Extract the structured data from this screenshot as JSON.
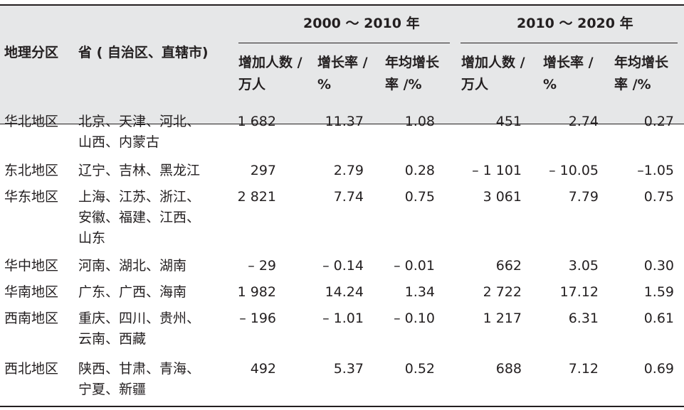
{
  "headers": {
    "col_region": "地理分区",
    "col_provinces": "省 ( 自治区、直辖市)",
    "group_a": "2000 ～ 2010 年",
    "group_b": "2010 ～ 2020 年",
    "sub_increase_l1": "增加人数 /",
    "sub_increase_l2": "万人",
    "sub_rate_l1": "增长率 /",
    "sub_rate_l2": "%",
    "sub_annual_l1": "年均增长",
    "sub_annual_l2": "率 /%"
  },
  "rows": [
    {
      "region": "华北地区",
      "provinces": [
        "北京、天津、河北、",
        "山西、内蒙古"
      ],
      "a_inc": "1 682",
      "a_rate": "11.37",
      "a_ann": "1.08",
      "b_inc": "451",
      "b_rate": "2.74",
      "b_ann": "0.27"
    },
    {
      "region": "东北地区",
      "provinces": [
        "辽宁、吉林、黑龙江"
      ],
      "a_inc": "297",
      "a_rate": "2.79",
      "a_ann": "0.28",
      "b_inc": "– 1 101",
      "b_rate": "– 10.05",
      "b_ann": "–1.05"
    },
    {
      "region": "华东地区",
      "provinces": [
        "上海、江苏、浙江、",
        "安徽、福建、江西、",
        "山东"
      ],
      "a_inc": "2 821",
      "a_rate": "7.74",
      "a_ann": "0.75",
      "b_inc": "3 061",
      "b_rate": "7.79",
      "b_ann": "0.75"
    },
    {
      "region": "华中地区",
      "provinces": [
        "河南、湖北、湖南"
      ],
      "a_inc": "– 29",
      "a_rate": "– 0.14",
      "a_ann": "– 0.01",
      "b_inc": "662",
      "b_rate": "3.05",
      "b_ann": "0.30"
    },
    {
      "region": "华南地区",
      "provinces": [
        "广东、广西、海南"
      ],
      "a_inc": "1 982",
      "a_rate": "14.24",
      "a_ann": "1.34",
      "b_inc": "2 722",
      "b_rate": "17.12",
      "b_ann": "1.59"
    },
    {
      "region": "西南地区",
      "provinces": [
        "重庆、四川、贵州、",
        "云南、西藏"
      ],
      "a_inc": "– 196",
      "a_rate": "– 1.01",
      "a_ann": "– 0.10",
      "b_inc": "1 217",
      "b_rate": "6.31",
      "b_ann": "0.61"
    },
    {
      "region": "西北地区",
      "provinces": [
        "陕西、甘肃、青海、",
        "宁夏、新疆"
      ],
      "a_inc": "492",
      "a_rate": "5.37",
      "a_ann": "0.52",
      "b_inc": "688",
      "b_rate": "7.12",
      "b_ann": "0.69"
    }
  ]
}
